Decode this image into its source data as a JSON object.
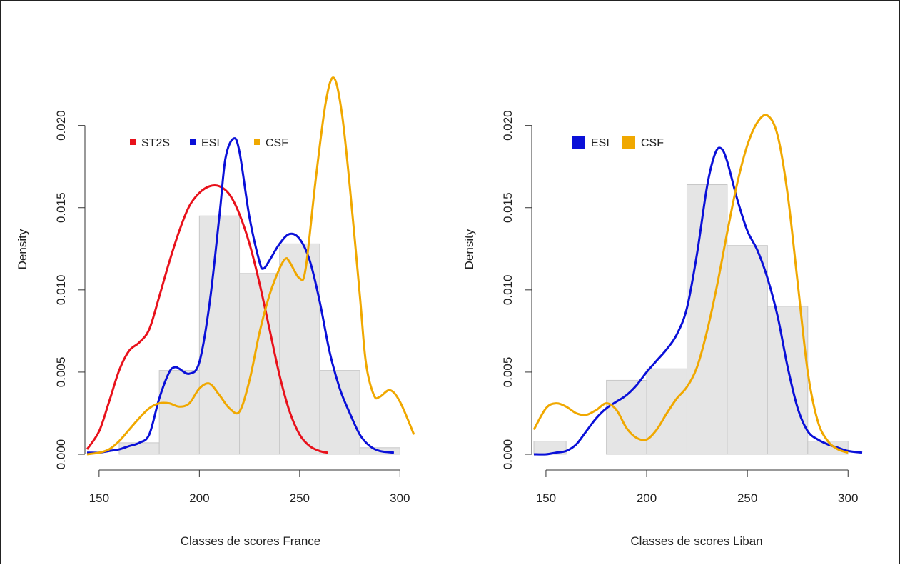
{
  "chart_data": [
    {
      "type": "histogram_density",
      "xlabel": "Classes de scores France",
      "ylabel": "Density",
      "xlim": [
        144,
        307
      ],
      "ylim": [
        0,
        0.0232
      ],
      "x_ticks": [
        150,
        200,
        250,
        300
      ],
      "y_ticks": [
        0.0,
        0.005,
        0.01,
        0.015,
        0.02
      ],
      "y_tick_labels": [
        "0.000",
        "0.005",
        "0.010",
        "0.015",
        "0.020"
      ],
      "legend": {
        "placement": "top-left",
        "entries": [
          {
            "label": "ST2S",
            "color": "#e8111b"
          },
          {
            "label": "ESI",
            "color": "#0a10d8"
          },
          {
            "label": "CSF",
            "color": "#f0a800"
          }
        ]
      },
      "histogram": {
        "bins": [
          [
            140,
            160
          ],
          [
            160,
            180
          ],
          [
            180,
            200
          ],
          [
            200,
            220
          ],
          [
            220,
            240
          ],
          [
            240,
            260
          ],
          [
            260,
            280
          ],
          [
            280,
            300
          ]
        ],
        "density": [
          0.0,
          0.0007,
          0.0051,
          0.0145,
          0.011,
          0.0128,
          0.0051,
          0.0004
        ]
      },
      "series": [
        {
          "name": "ST2S",
          "color": "#e8111b",
          "x": [
            144,
            150,
            155,
            160,
            165,
            170,
            175,
            180,
            185,
            190,
            195,
            200,
            205,
            210,
            215,
            220,
            225,
            230,
            235,
            240,
            245,
            250,
            255,
            260,
            264
          ],
          "y": [
            0.0003,
            0.0014,
            0.0032,
            0.0051,
            0.0063,
            0.0068,
            0.0076,
            0.0096,
            0.0117,
            0.0136,
            0.0151,
            0.0159,
            0.0163,
            0.0163,
            0.0158,
            0.0146,
            0.0128,
            0.0104,
            0.0076,
            0.0048,
            0.0026,
            0.0012,
            0.0005,
            0.0002,
            0.0001
          ]
        },
        {
          "name": "ESI",
          "color": "#0a10d8",
          "x": [
            144,
            150,
            155,
            160,
            165,
            170,
            175,
            180,
            185,
            188,
            190,
            195,
            200,
            205,
            210,
            213,
            217,
            220,
            225,
            230,
            232,
            235,
            240,
            245,
            250,
            255,
            260,
            265,
            270,
            275,
            280,
            285,
            290,
            297
          ],
          "y": [
            0.0001,
            0.0001,
            0.0002,
            0.0003,
            0.0005,
            0.0007,
            0.0012,
            0.0034,
            0.005,
            0.0053,
            0.0052,
            0.0049,
            0.0056,
            0.0091,
            0.0145,
            0.018,
            0.0192,
            0.0184,
            0.0144,
            0.0117,
            0.0113,
            0.0118,
            0.0128,
            0.0134,
            0.0131,
            0.0118,
            0.0093,
            0.0062,
            0.004,
            0.0025,
            0.0012,
            0.0005,
            0.0002,
            0.0001
          ]
        },
        {
          "name": "CSF",
          "color": "#f0a800",
          "x": [
            144,
            150,
            155,
            160,
            165,
            170,
            175,
            180,
            185,
            190,
            195,
            200,
            205,
            210,
            215,
            220,
            225,
            230,
            235,
            240,
            243,
            245,
            250,
            253,
            258,
            263,
            267,
            271,
            275,
            280,
            283,
            287,
            290,
            295,
            300,
            307
          ],
          "y": [
            0.0,
            0.0001,
            0.0003,
            0.0008,
            0.0015,
            0.0022,
            0.0028,
            0.0031,
            0.0031,
            0.0029,
            0.0031,
            0.004,
            0.0043,
            0.0036,
            0.0028,
            0.0026,
            0.0045,
            0.0074,
            0.0097,
            0.0113,
            0.0119,
            0.0117,
            0.0107,
            0.0113,
            0.0167,
            0.0214,
            0.0229,
            0.0208,
            0.0163,
            0.0097,
            0.0056,
            0.0036,
            0.0035,
            0.0039,
            0.0032,
            0.0012
          ]
        }
      ]
    },
    {
      "type": "histogram_density",
      "xlabel": "Classes de scores Liban",
      "ylabel": "Density",
      "xlim": [
        144,
        307
      ],
      "ylim": [
        0,
        0.0232
      ],
      "x_ticks": [
        150,
        200,
        250,
        300
      ],
      "y_ticks": [
        0.0,
        0.005,
        0.01,
        0.015,
        0.02
      ],
      "y_tick_labels": [
        "0.000",
        "0.005",
        "0.010",
        "0.015",
        "0.020"
      ],
      "legend": {
        "placement": "top-left",
        "entries": [
          {
            "label": "ESI",
            "color": "#0a10d8"
          },
          {
            "label": "CSF",
            "color": "#f0a800"
          }
        ]
      },
      "histogram": {
        "bins": [
          [
            140,
            160
          ],
          [
            160,
            180
          ],
          [
            180,
            200
          ],
          [
            200,
            220
          ],
          [
            220,
            240
          ],
          [
            240,
            260
          ],
          [
            260,
            280
          ],
          [
            280,
            300
          ]
        ],
        "density": [
          0.0008,
          0.0,
          0.0045,
          0.0052,
          0.0164,
          0.0127,
          0.009,
          0.0008
        ]
      },
      "series": [
        {
          "name": "ESI",
          "color": "#0a10d8",
          "x": [
            144,
            150,
            155,
            160,
            165,
            170,
            175,
            180,
            185,
            190,
            195,
            200,
            205,
            210,
            215,
            220,
            225,
            230,
            234,
            237,
            240,
            245,
            250,
            255,
            260,
            265,
            270,
            275,
            280,
            285,
            290,
            295,
            300,
            307
          ],
          "y": [
            0.0,
            0.0,
            0.0001,
            0.0002,
            0.0006,
            0.0014,
            0.0022,
            0.0028,
            0.0032,
            0.0036,
            0.0042,
            0.005,
            0.0057,
            0.0064,
            0.0073,
            0.0089,
            0.0122,
            0.0163,
            0.0183,
            0.0186,
            0.0178,
            0.0155,
            0.0136,
            0.0124,
            0.0107,
            0.0084,
            0.0053,
            0.0028,
            0.0014,
            0.0009,
            0.0006,
            0.0004,
            0.0002,
            0.0001
          ]
        },
        {
          "name": "CSF",
          "color": "#f0a800",
          "x": [
            144,
            150,
            155,
            160,
            165,
            170,
            175,
            180,
            185,
            190,
            195,
            200,
            205,
            210,
            215,
            220,
            225,
            230,
            235,
            240,
            245,
            250,
            255,
            260,
            265,
            270,
            275,
            280,
            285,
            290,
            295,
            300
          ],
          "y": [
            0.0015,
            0.0028,
            0.0031,
            0.0029,
            0.0025,
            0.0024,
            0.0027,
            0.0031,
            0.0027,
            0.0016,
            0.001,
            0.0009,
            0.0015,
            0.0025,
            0.0034,
            0.0041,
            0.0053,
            0.0075,
            0.0103,
            0.0135,
            0.0165,
            0.0188,
            0.0202,
            0.0206,
            0.0194,
            0.0158,
            0.0104,
            0.005,
            0.002,
            0.0008,
            0.0003,
            0.0001
          ]
        }
      ]
    }
  ],
  "style": {
    "hist_fill": "#e5e5e5",
    "hist_stroke": "#c8c8c8",
    "axis_color": "#333333"
  }
}
